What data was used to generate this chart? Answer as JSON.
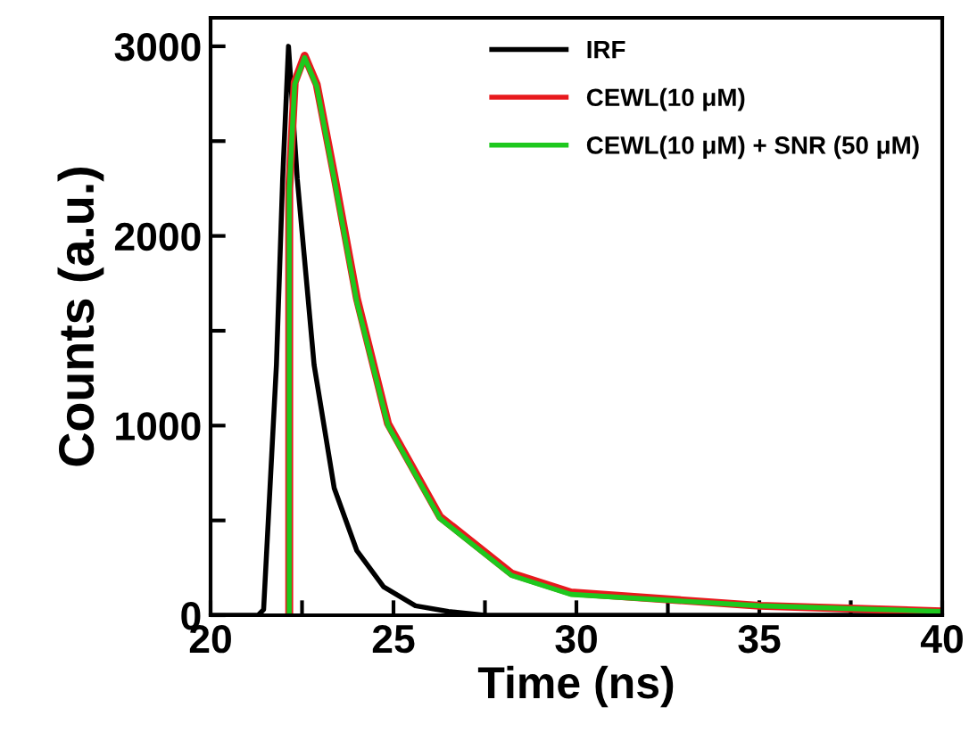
{
  "chart_data": {
    "type": "line",
    "xlabel": "Time (ns)",
    "ylabel": "Counts (a.u.)",
    "xlim": [
      20,
      40
    ],
    "ylim": [
      0,
      3150
    ],
    "xticks": [
      20,
      {
        "value": 22.5,
        "label": null
      },
      25,
      {
        "value": 27.5,
        "label": null
      },
      30,
      {
        "value": 32.5,
        "label": null
      },
      35,
      {
        "value": 37.5,
        "label": null
      },
      40
    ],
    "yticks": [
      0,
      {
        "value": 500,
        "label": null
      },
      1000,
      {
        "value": 1500,
        "label": null
      },
      2000,
      {
        "value": 2500,
        "label": null
      },
      3000
    ],
    "legend": "top right",
    "grid": false,
    "series": [
      {
        "name": "IRF",
        "color": "#000000",
        "x": [
          20,
          21.3,
          21.45,
          21.8,
          21.97,
          22.13,
          22.37,
          22.83,
          23.38,
          24.0,
          24.73,
          25.6,
          26.5,
          27.5,
          30,
          35,
          40
        ],
        "values": [
          0,
          0,
          30,
          1320,
          2300,
          3000,
          2300,
          1320,
          670,
          340,
          150,
          50,
          20,
          0,
          0,
          0,
          0
        ]
      },
      {
        "name": "CEWL(10 μM)",
        "color": "#e8191d",
        "x": [
          22.15,
          22.15,
          22.3,
          22.57,
          22.9,
          23.38,
          24.0,
          24.85,
          26.27,
          28.23,
          29.85,
          35,
          40
        ],
        "values": [
          0,
          2250,
          2810,
          2950,
          2800,
          2320,
          1670,
          1010,
          520,
          220,
          120,
          50,
          20
        ]
      },
      {
        "name": "CEWL(10 μM) + SNR (50 μM)",
        "color": "#1ec81e",
        "x": [
          22.15,
          22.15,
          22.3,
          22.57,
          22.9,
          23.38,
          24.0,
          24.85,
          26.27,
          28.23,
          29.85,
          35,
          40
        ],
        "values": [
          0,
          2240,
          2800,
          2940,
          2790,
          2300,
          1650,
          1000,
          510,
          210,
          110,
          50,
          20
        ]
      }
    ]
  }
}
